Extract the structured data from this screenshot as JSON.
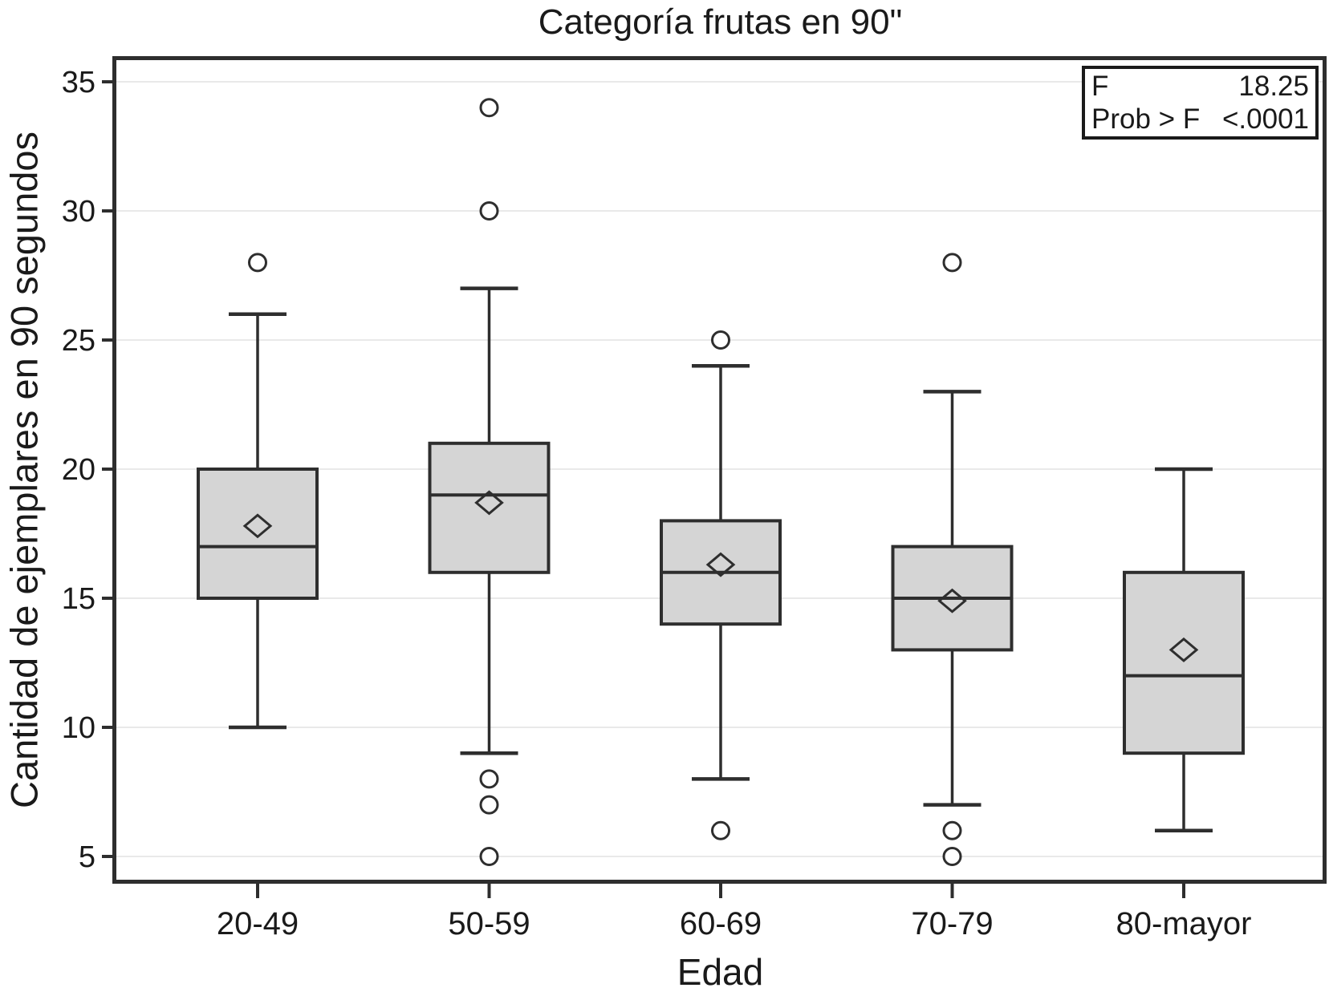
{
  "chart_data": {
    "type": "boxplot",
    "title": "Categoría frutas en 90\"",
    "xlabel": "Edad",
    "ylabel": "Cantidad de ejemplares en 90 segundos",
    "categories": [
      "20-49",
      "50-59",
      "60-69",
      "70-79",
      "80-mayor"
    ],
    "yticks": [
      5,
      10,
      15,
      20,
      25,
      30,
      35
    ],
    "ylim": [
      4,
      36
    ],
    "grid": "horizontal-only",
    "legend": "none",
    "series": [
      {
        "category": "20-49",
        "whisker_low": 10,
        "q1": 15,
        "median": 17,
        "q3": 20,
        "whisker_high": 26,
        "mean": 17.8,
        "outliers": [
          28
        ]
      },
      {
        "category": "50-59",
        "whisker_low": 9,
        "q1": 16,
        "median": 19,
        "q3": 21,
        "whisker_high": 27,
        "mean": 18.7,
        "outliers": [
          34,
          30,
          8,
          7,
          5
        ]
      },
      {
        "category": "60-69",
        "whisker_low": 8,
        "q1": 14,
        "median": 16,
        "q3": 18,
        "whisker_high": 24,
        "mean": 16.3,
        "outliers": [
          25,
          6
        ]
      },
      {
        "category": "70-79",
        "whisker_low": 7,
        "q1": 13,
        "median": 15,
        "q3": 17,
        "whisker_high": 23,
        "mean": 14.9,
        "outliers": [
          28,
          6,
          5
        ]
      },
      {
        "category": "80-mayor",
        "whisker_low": 6,
        "q1": 9,
        "median": 12,
        "q3": 16,
        "whisker_high": 20,
        "mean": 13.0,
        "outliers": []
      }
    ],
    "annotation_box": {
      "rows": [
        {
          "label": "F",
          "value": "18.25"
        },
        {
          "label": "Prob > F",
          "value": "<.0001"
        }
      ]
    },
    "colors": {
      "background": "#ffffff",
      "box_fill": "#d5d5d5",
      "stroke": "#2e2e2e",
      "gridline": "#e9e9e9",
      "text": "#1a1a1a",
      "outlier_fill": "#ffffff"
    }
  }
}
